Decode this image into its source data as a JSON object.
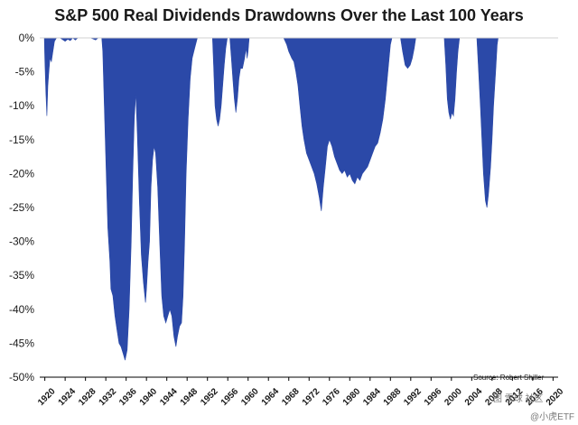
{
  "title": "S&P 500 Real Dividends Drawdowns Over the Last 100 Years",
  "source": "Source: Robert Shiller",
  "watermark_top": "图 雪球 社区",
  "watermark_bottom": "@小虎ETF",
  "colors": {
    "fill": "#2b49a8",
    "axis": "#000000",
    "background": "#ffffff"
  },
  "chart_data": {
    "type": "area",
    "title": "S&P 500 Real Dividends Drawdowns Over the Last 100 Years",
    "xlabel": "",
    "ylabel": "",
    "xlim": [
      1919,
      2021
    ],
    "ylim": [
      -50,
      0
    ],
    "grid": false,
    "legend": "none",
    "x_ticks": [
      "1920",
      "1924",
      "1928",
      "1932",
      "1936",
      "1940",
      "1944",
      "1948",
      "1952",
      "1956",
      "1960",
      "1964",
      "1968",
      "1972",
      "1976",
      "1980",
      "1984",
      "1988",
      "1992",
      "1996",
      "2000",
      "2004",
      "2008",
      "2012",
      "2016",
      "2020"
    ],
    "y_ticks": [
      "0%",
      "-5%",
      "-10%",
      "-15%",
      "-20%",
      "-25%",
      "-30%",
      "-35%",
      "-40%",
      "-45%",
      "-50%"
    ],
    "series": [
      {
        "values_unit": "percent",
        "points": [
          [
            1919.0,
            0
          ],
          [
            1919.9,
            0
          ],
          [
            1920.0,
            -3
          ],
          [
            1920.2,
            -8
          ],
          [
            1920.4,
            -11.5
          ],
          [
            1920.6,
            -7
          ],
          [
            1920.8,
            -5
          ],
          [
            1921.0,
            -3
          ],
          [
            1921.3,
            -3.5
          ],
          [
            1921.6,
            -2
          ],
          [
            1921.9,
            -0.5
          ],
          [
            1922.3,
            0
          ],
          [
            1923.0,
            0
          ],
          [
            1924.0,
            -0.5
          ],
          [
            1924.5,
            -0.2
          ],
          [
            1925.0,
            -0.4
          ],
          [
            1925.5,
            0
          ],
          [
            1926.0,
            -0.3
          ],
          [
            1926.5,
            0
          ],
          [
            1927.0,
            0
          ],
          [
            1929.0,
            0
          ],
          [
            1930.0,
            -0.3
          ],
          [
            1930.5,
            0
          ],
          [
            1931.2,
            0
          ],
          [
            1931.4,
            -2
          ],
          [
            1931.7,
            -10
          ],
          [
            1932.0,
            -18
          ],
          [
            1932.4,
            -28
          ],
          [
            1932.8,
            -33
          ],
          [
            1933.0,
            -37
          ],
          [
            1933.4,
            -38
          ],
          [
            1933.8,
            -41
          ],
          [
            1934.2,
            -43
          ],
          [
            1934.6,
            -45
          ],
          [
            1935.0,
            -45.5
          ],
          [
            1935.4,
            -46.5
          ],
          [
            1935.8,
            -47.5
          ],
          [
            1936.2,
            -46
          ],
          [
            1936.6,
            -40
          ],
          [
            1937.0,
            -30
          ],
          [
            1937.3,
            -20
          ],
          [
            1937.6,
            -12
          ],
          [
            1937.9,
            -8
          ],
          [
            1938.2,
            -14
          ],
          [
            1938.6,
            -24
          ],
          [
            1939.0,
            -32
          ],
          [
            1939.4,
            -36
          ],
          [
            1939.8,
            -39
          ],
          [
            1940.0,
            -37
          ],
          [
            1940.3,
            -33
          ],
          [
            1940.6,
            -30
          ],
          [
            1940.9,
            -22
          ],
          [
            1941.2,
            -18
          ],
          [
            1941.5,
            -16
          ],
          [
            1941.8,
            -17
          ],
          [
            1942.2,
            -22
          ],
          [
            1942.6,
            -30
          ],
          [
            1943.0,
            -38
          ],
          [
            1943.4,
            -41
          ],
          [
            1943.8,
            -42
          ],
          [
            1944.2,
            -41
          ],
          [
            1944.6,
            -40
          ],
          [
            1945.0,
            -41
          ],
          [
            1945.4,
            -44
          ],
          [
            1945.8,
            -45.5
          ],
          [
            1946.1,
            -44
          ],
          [
            1946.5,
            -42.5
          ],
          [
            1946.9,
            -42
          ],
          [
            1947.2,
            -38
          ],
          [
            1947.5,
            -30
          ],
          [
            1947.8,
            -20
          ],
          [
            1948.2,
            -12
          ],
          [
            1948.6,
            -6
          ],
          [
            1949.0,
            -3
          ],
          [
            1949.5,
            -1.5
          ],
          [
            1950.0,
            0
          ],
          [
            1953.0,
            0
          ],
          [
            1953.2,
            -4
          ],
          [
            1953.5,
            -10
          ],
          [
            1953.8,
            -12
          ],
          [
            1954.1,
            -13
          ],
          [
            1954.4,
            -12
          ],
          [
            1954.7,
            -10
          ],
          [
            1955.0,
            -7
          ],
          [
            1955.3,
            -4
          ],
          [
            1955.6,
            -1.5
          ],
          [
            1955.9,
            0
          ],
          [
            1956.4,
            0
          ],
          [
            1956.7,
            -3
          ],
          [
            1957.0,
            -6
          ],
          [
            1957.3,
            -9
          ],
          [
            1957.6,
            -11
          ],
          [
            1957.9,
            -9
          ],
          [
            1958.2,
            -6
          ],
          [
            1958.5,
            -4.5
          ],
          [
            1958.9,
            -4.5
          ],
          [
            1959.3,
            -3
          ],
          [
            1959.6,
            -1.5
          ],
          [
            1959.8,
            -3
          ],
          [
            1960.0,
            -2
          ],
          [
            1960.2,
            0
          ],
          [
            1967.0,
            0
          ],
          [
            1967.6,
            -1
          ],
          [
            1968.0,
            -2
          ],
          [
            1968.6,
            -3
          ],
          [
            1969.0,
            -3.5
          ],
          [
            1969.4,
            -5
          ],
          [
            1969.8,
            -7
          ],
          [
            1970.2,
            -10
          ],
          [
            1970.6,
            -13
          ],
          [
            1971.0,
            -15
          ],
          [
            1971.5,
            -17
          ],
          [
            1972.0,
            -18
          ],
          [
            1972.5,
            -19
          ],
          [
            1973.0,
            -20
          ],
          [
            1973.5,
            -21.5
          ],
          [
            1974.0,
            -23.5
          ],
          [
            1974.4,
            -25.5
          ],
          [
            1974.8,
            -22
          ],
          [
            1975.2,
            -19
          ],
          [
            1975.6,
            -16
          ],
          [
            1976.0,
            -15
          ],
          [
            1976.5,
            -16
          ],
          [
            1977.0,
            -17.5
          ],
          [
            1977.5,
            -18.5
          ],
          [
            1978.0,
            -19.5
          ],
          [
            1978.5,
            -20
          ],
          [
            1979.0,
            -19.5
          ],
          [
            1979.5,
            -20.5
          ],
          [
            1980.0,
            -20
          ],
          [
            1980.5,
            -21
          ],
          [
            1981.0,
            -21.5
          ],
          [
            1981.5,
            -20.5
          ],
          [
            1982.0,
            -21
          ],
          [
            1982.5,
            -20
          ],
          [
            1983.0,
            -19.5
          ],
          [
            1983.5,
            -19
          ],
          [
            1984.0,
            -18
          ],
          [
            1984.5,
            -17
          ],
          [
            1985.0,
            -16
          ],
          [
            1985.5,
            -15.5
          ],
          [
            1986.0,
            -14
          ],
          [
            1986.5,
            -12
          ],
          [
            1987.0,
            -9
          ],
          [
            1987.5,
            -5
          ],
          [
            1988.0,
            -1
          ],
          [
            1988.3,
            0
          ],
          [
            1990.0,
            0
          ],
          [
            1990.4,
            -2
          ],
          [
            1990.9,
            -4
          ],
          [
            1991.4,
            -4.5
          ],
          [
            1991.9,
            -4
          ],
          [
            1992.3,
            -3
          ],
          [
            1992.7,
            -1.5
          ],
          [
            1993.0,
            0
          ],
          [
            1998.6,
            0
          ],
          [
            1998.9,
            -4
          ],
          [
            1999.2,
            -9
          ],
          [
            1999.5,
            -11
          ],
          [
            1999.8,
            -12
          ],
          [
            2000.1,
            -11
          ],
          [
            2000.4,
            -11.5
          ],
          [
            2000.7,
            -9
          ],
          [
            2001.0,
            -5
          ],
          [
            2001.3,
            -2
          ],
          [
            2001.6,
            0
          ],
          [
            2005.0,
            0
          ],
          [
            2005.3,
            -4
          ],
          [
            2005.7,
            -10
          ],
          [
            2006.0,
            -15
          ],
          [
            2006.3,
            -20
          ],
          [
            2006.7,
            -24
          ],
          [
            2007.0,
            -25
          ],
          [
            2007.3,
            -23
          ],
          [
            2007.7,
            -19
          ],
          [
            2008.0,
            -15
          ],
          [
            2008.3,
            -10
          ],
          [
            2008.7,
            -5
          ],
          [
            2009.0,
            -1
          ],
          [
            2009.2,
            0
          ],
          [
            2021.0,
            0
          ]
        ]
      }
    ]
  }
}
